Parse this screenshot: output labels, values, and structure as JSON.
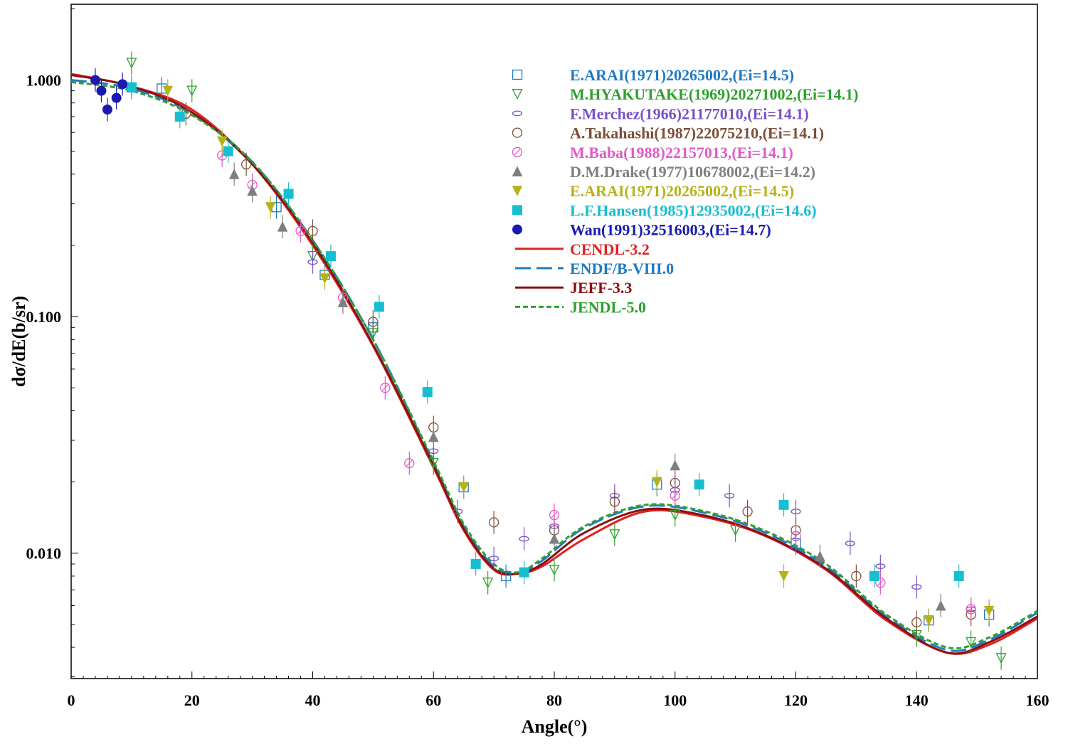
{
  "chart_data": {
    "type": "scatter",
    "title": "",
    "xlabel": "Angle(°)",
    "ylabel": "dσ/dE(b/sr)",
    "xlim": [
      0,
      160
    ],
    "ylim_log10": [
      -2.53,
      0.32
    ],
    "x_ticks": [
      0,
      20,
      40,
      60,
      80,
      100,
      120,
      140,
      160
    ],
    "x_tick_labels": [
      "0",
      "20",
      "40",
      "60",
      "80",
      "100",
      "120",
      "140",
      "160"
    ],
    "y_ticks": [
      0.01,
      0.1,
      1.0
    ],
    "y_tick_labels": [
      "0.010",
      "0.100",
      "1.000"
    ],
    "legend_position": "top-right",
    "series": [
      {
        "name": "E.ARAI(1971)20265002,(Ei=14.5)",
        "kind": "points",
        "marker": "open-square",
        "color": "#1f7ac4",
        "points": [
          [
            10,
            0.93
          ],
          [
            15,
            0.92
          ],
          [
            34,
            0.29
          ],
          [
            42,
            0.15
          ],
          [
            50,
            0.09
          ],
          [
            65,
            0.019
          ],
          [
            72,
            0.008
          ],
          [
            97,
            0.0195
          ],
          [
            120,
            0.011
          ],
          [
            142,
            0.0052
          ],
          [
            152,
            0.0055
          ]
        ]
      },
      {
        "name": "M.HYAKUTAKE(1969)20271002,(Ei=14.1)",
        "kind": "points",
        "marker": "open-triangle-down",
        "color": "#2ea02e",
        "points": [
          [
            10,
            1.18
          ],
          [
            20,
            0.9
          ],
          [
            40,
            0.18
          ],
          [
            50,
            0.085
          ],
          [
            60,
            0.024
          ],
          [
            69,
            0.0075
          ],
          [
            80,
            0.0085
          ],
          [
            90,
            0.012
          ],
          [
            100,
            0.0145
          ],
          [
            110,
            0.0125
          ],
          [
            140,
            0.0045
          ],
          [
            149,
            0.0042
          ],
          [
            154,
            0.0036
          ]
        ]
      },
      {
        "name": "F.Merchez(1966)21177010,(Ei=14.1)",
        "kind": "points",
        "marker": "open-ellipse",
        "color": "#7a52c8",
        "points": [
          [
            40,
            0.17
          ],
          [
            60,
            0.027
          ],
          [
            64,
            0.015
          ],
          [
            70,
            0.0095
          ],
          [
            75,
            0.0115
          ],
          [
            80,
            0.013
          ],
          [
            90,
            0.0175
          ],
          [
            100,
            0.0185
          ],
          [
            109,
            0.0175
          ],
          [
            120,
            0.015
          ],
          [
            129,
            0.011
          ],
          [
            134,
            0.0088
          ],
          [
            140,
            0.0072
          ],
          [
            149,
            0.0058
          ]
        ]
      },
      {
        "name": "A.Takahashi(1987)22075210,(Ei=14.1)",
        "kind": "points",
        "marker": "open-circle",
        "color": "#7d4f3a",
        "points": [
          [
            19,
            0.72
          ],
          [
            29,
            0.44
          ],
          [
            40,
            0.23
          ],
          [
            50,
            0.095
          ],
          [
            60,
            0.034
          ],
          [
            70,
            0.0135
          ],
          [
            80,
            0.0125
          ],
          [
            90,
            0.0165
          ],
          [
            100,
            0.0198
          ],
          [
            112,
            0.015
          ],
          [
            120,
            0.0125
          ],
          [
            130,
            0.008
          ],
          [
            140,
            0.0051
          ],
          [
            149,
            0.0055
          ]
        ]
      },
      {
        "name": "M.Baba(1988)22157013,(Ei=14.1)",
        "kind": "points",
        "marker": "open-circle-slash",
        "color": "#e05ac8",
        "points": [
          [
            25,
            0.48
          ],
          [
            30,
            0.36
          ],
          [
            38,
            0.23
          ],
          [
            45,
            0.12
          ],
          [
            52,
            0.05
          ],
          [
            56,
            0.024
          ],
          [
            80,
            0.0145
          ],
          [
            100,
            0.0175
          ],
          [
            120,
            0.0118
          ],
          [
            134,
            0.0075
          ],
          [
            149,
            0.0058
          ]
        ]
      },
      {
        "name": "D.M.Drake(1977)10678002,(Ei=14.2)",
        "kind": "points",
        "marker": "filled-triangle-up",
        "color": "#7f7f7f",
        "points": [
          [
            27,
            0.4
          ],
          [
            30,
            0.34
          ],
          [
            35,
            0.24
          ],
          [
            45,
            0.115
          ],
          [
            60,
            0.031
          ],
          [
            80,
            0.0115
          ],
          [
            100,
            0.0235
          ],
          [
            124,
            0.0097
          ],
          [
            144,
            0.006
          ]
        ]
      },
      {
        "name": "E.ARAI(1971)20265002,(Ei=14.5)",
        "kind": "points",
        "marker": "filled-triangle-down",
        "color": "#b5b218",
        "points": [
          [
            16,
            0.9
          ],
          [
            25,
            0.55
          ],
          [
            33,
            0.29
          ],
          [
            42,
            0.145
          ],
          [
            65,
            0.019
          ],
          [
            97,
            0.02
          ],
          [
            118,
            0.008
          ],
          [
            142,
            0.0052
          ],
          [
            152,
            0.0057
          ]
        ]
      },
      {
        "name": "L.F.Hansen(1985)12935002,(Ei=14.6)",
        "kind": "points",
        "marker": "filled-square",
        "color": "#17becf",
        "points": [
          [
            10,
            0.93
          ],
          [
            18,
            0.7
          ],
          [
            26,
            0.5
          ],
          [
            36,
            0.33
          ],
          [
            43,
            0.18
          ],
          [
            51,
            0.11
          ],
          [
            59,
            0.048
          ],
          [
            67,
            0.009
          ],
          [
            75,
            0.0083
          ],
          [
            104,
            0.0195
          ],
          [
            118,
            0.016
          ],
          [
            133,
            0.008
          ],
          [
            147,
            0.008
          ]
        ]
      },
      {
        "name": "Wan(1991)32516003,(Ei=14.7)",
        "kind": "points",
        "marker": "filled-circle",
        "color": "#1a1ab0",
        "points": [
          [
            4,
            1.0
          ],
          [
            5,
            0.9
          ],
          [
            6,
            0.75
          ],
          [
            7.5,
            0.84
          ],
          [
            8.5,
            0.96
          ]
        ]
      },
      {
        "name": "CENDL-3.2",
        "kind": "line",
        "style": "solid",
        "color": "#e02020",
        "x": [
          0,
          10,
          20,
          30,
          40,
          50,
          60,
          65,
          70,
          74,
          78,
          85,
          95,
          105,
          115,
          125,
          135,
          145,
          152,
          160
        ],
        "y": [
          1.06,
          0.94,
          0.75,
          0.44,
          0.2,
          0.075,
          0.023,
          0.0125,
          0.0085,
          0.0082,
          0.0088,
          0.0115,
          0.015,
          0.0142,
          0.0118,
          0.0085,
          0.0052,
          0.0038,
          0.0041,
          0.0053
        ]
      },
      {
        "name": "ENDF/B-VIII.0",
        "kind": "line",
        "style": "dashed",
        "color": "#1f7ac4",
        "x": [
          0,
          10,
          20,
          30,
          40,
          50,
          60,
          65,
          70,
          74,
          78,
          85,
          95,
          105,
          115,
          125,
          135,
          145,
          152,
          160
        ],
        "y": [
          1.0,
          0.92,
          0.72,
          0.45,
          0.21,
          0.08,
          0.024,
          0.013,
          0.0088,
          0.0082,
          0.0093,
          0.0128,
          0.0158,
          0.0148,
          0.0122,
          0.0088,
          0.0054,
          0.0039,
          0.0043,
          0.0056
        ]
      },
      {
        "name": "JEFF-3.3",
        "kind": "line",
        "style": "solid",
        "color": "#8b1010",
        "x": [
          0,
          10,
          20,
          30,
          40,
          50,
          60,
          65,
          70,
          74,
          78,
          85,
          95,
          105,
          115,
          125,
          135,
          145,
          152,
          160
        ],
        "y": [
          1.05,
          0.94,
          0.73,
          0.44,
          0.205,
          0.076,
          0.0235,
          0.0127,
          0.0086,
          0.0082,
          0.009,
          0.0122,
          0.0153,
          0.0144,
          0.0119,
          0.0086,
          0.0053,
          0.0038,
          0.0042,
          0.0054
        ]
      },
      {
        "name": "JENDL-5.0",
        "kind": "line",
        "style": "dotted",
        "color": "#2ea02e",
        "x": [
          0,
          10,
          20,
          30,
          40,
          50,
          60,
          65,
          70,
          74,
          78,
          85,
          95,
          105,
          115,
          125,
          135,
          145,
          152,
          160
        ],
        "y": [
          0.98,
          0.9,
          0.71,
          0.45,
          0.21,
          0.08,
          0.0245,
          0.0133,
          0.009,
          0.0083,
          0.0095,
          0.013,
          0.016,
          0.015,
          0.0124,
          0.009,
          0.0055,
          0.004,
          0.0044,
          0.0057
        ]
      }
    ]
  }
}
